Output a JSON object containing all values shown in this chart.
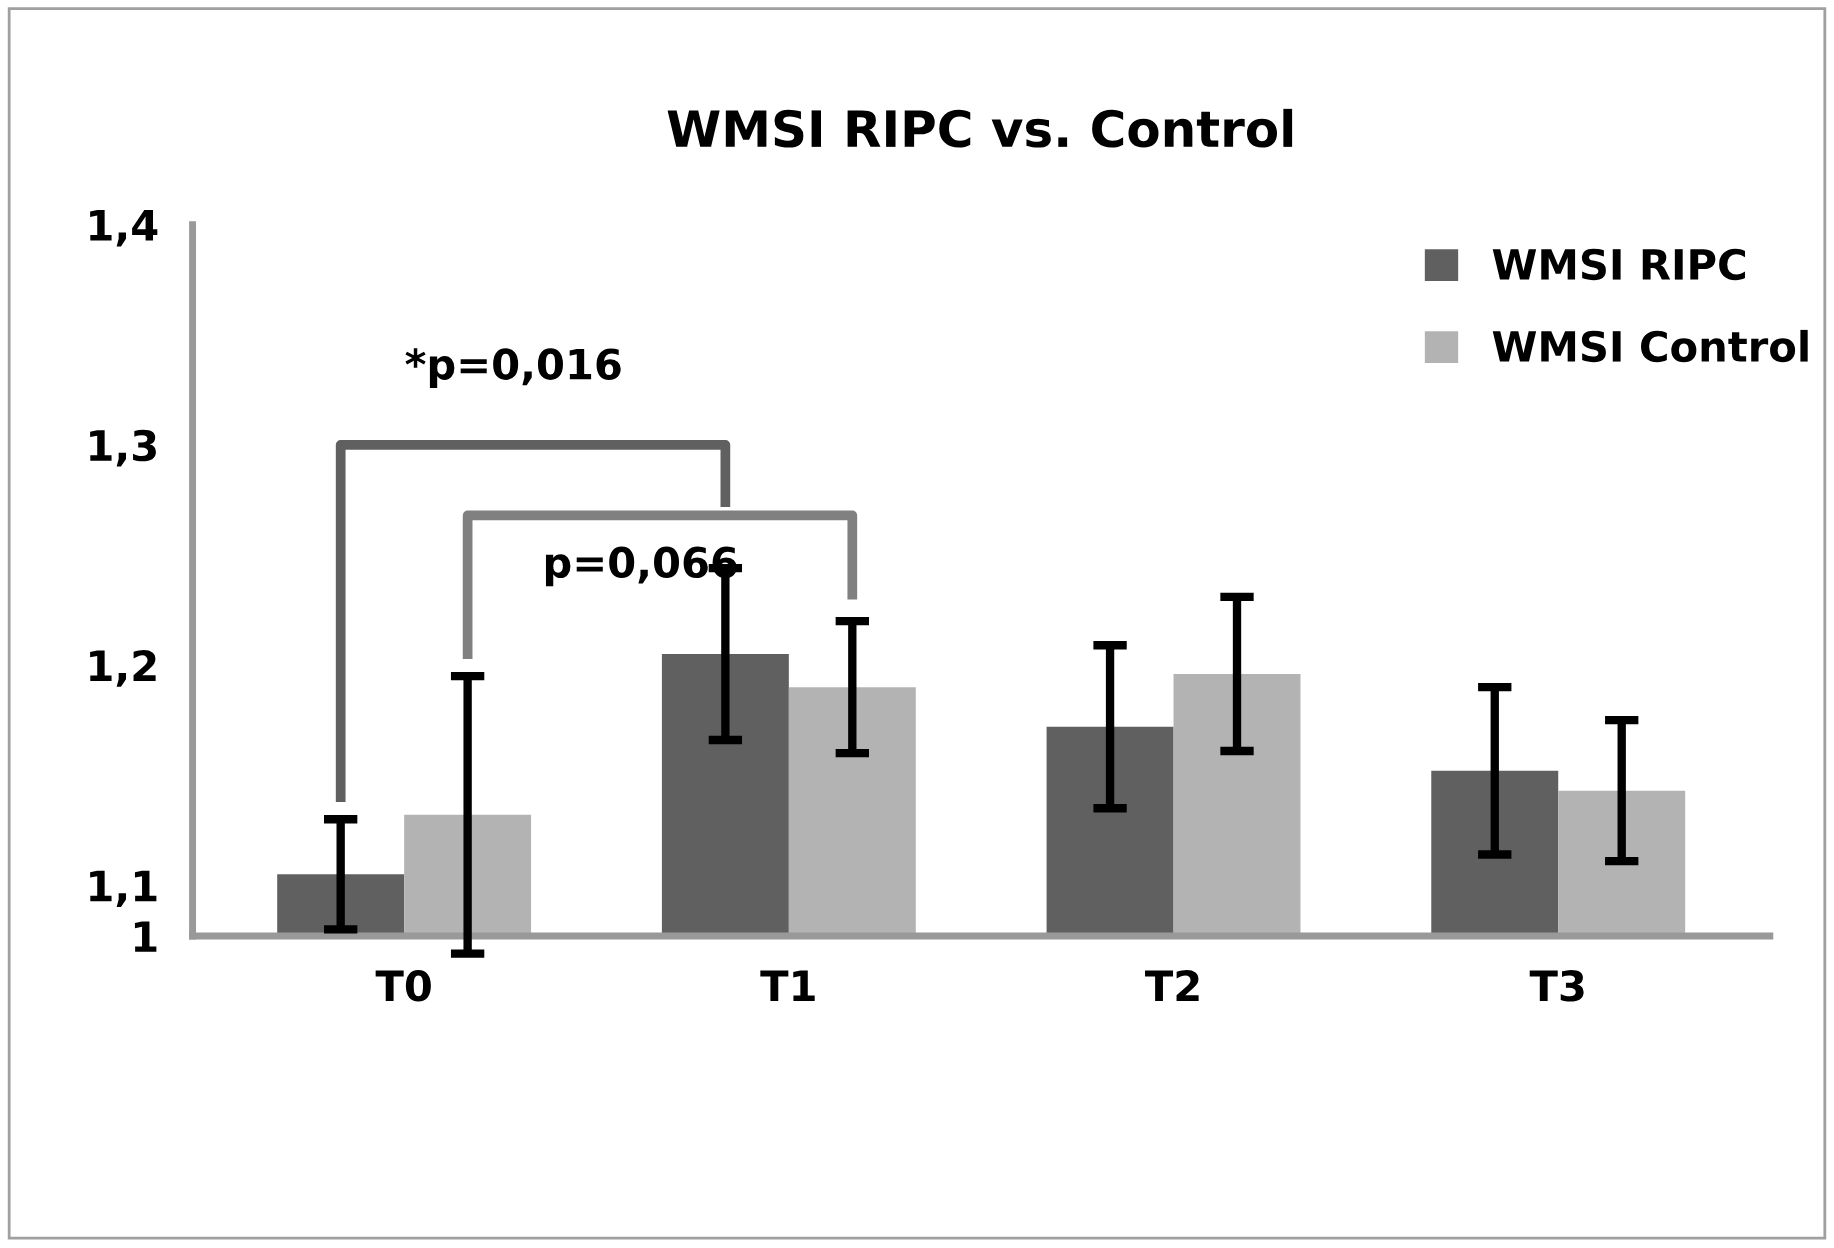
{
  "chart_data": {
    "type": "bar",
    "title": "WMSI RIPC vs. Control",
    "categories": [
      "T0",
      "T1",
      "T2",
      "T3"
    ],
    "series": [
      {
        "name": "WMSI RIPC",
        "color": "#606060",
        "values": [
          1.105,
          1.205,
          1.172,
          1.152
        ],
        "errors": [
          0.025,
          0.039,
          0.037,
          0.038
        ]
      },
      {
        "name": "WMSI Control",
        "color": "#b3b3b3",
        "values": [
          1.132,
          1.19,
          1.196,
          1.143
        ],
        "errors": [
          0.063,
          0.03,
          0.035,
          0.032
        ]
      }
    ],
    "ylim": [
      1.077,
      1.4
    ],
    "yticks": [
      {
        "value": 1.077,
        "label": "1"
      },
      {
        "value": 1.1,
        "label": "1,1"
      },
      {
        "value": 1.2,
        "label": "1,2"
      },
      {
        "value": 1.3,
        "label": "1,3"
      },
      {
        "value": 1.4,
        "label": "1,4"
      }
    ],
    "annotations": [
      "*p=0,016",
      "p=0,066"
    ],
    "legend": "top right",
    "grid": false
  }
}
